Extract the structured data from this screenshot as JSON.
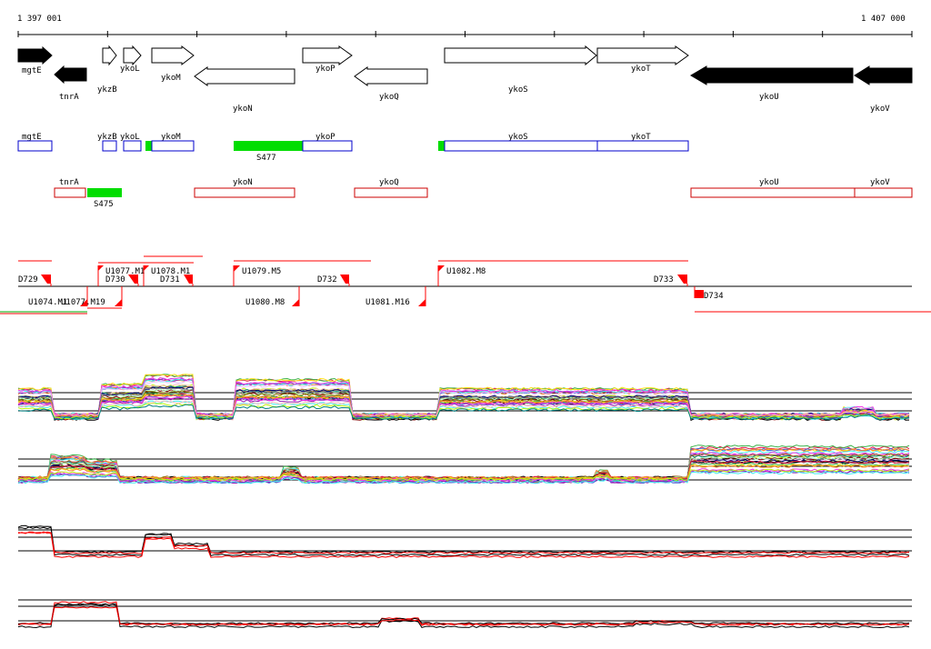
{
  "ruler": {
    "start_label": "1 397 001",
    "end_label": "1 407 000"
  },
  "colors": {
    "gene_filled": "#000000",
    "forward_box": "#0000cc",
    "reverse_box": "#cc0000",
    "rna_segment": "#00dd00",
    "marker": "#ff0000",
    "expression_lines": [
      "#e6194b",
      "#3cb44b",
      "#ffe119",
      "#4363d8",
      "#f58231",
      "#911eb4",
      "#46f0f0",
      "#f032e6",
      "#bcf60c",
      "#fabebe",
      "#008080",
      "#e6beff",
      "#9a6324",
      "#800000",
      "#aaffc3",
      "#808000",
      "#000075",
      "#808080"
    ]
  },
  "genes": [
    {
      "name": "mgtE",
      "strand": "+",
      "filled": true
    },
    {
      "name": "tnrA",
      "strand": "-",
      "filled": true
    },
    {
      "name": "ykzB",
      "strand": "+",
      "filled": false
    },
    {
      "name": "ykoL",
      "strand": "+",
      "filled": false
    },
    {
      "name": "ykoM",
      "strand": "+",
      "filled": false
    },
    {
      "name": "ykoN",
      "strand": "-",
      "filled": false
    },
    {
      "name": "ykoP",
      "strand": "+",
      "filled": false
    },
    {
      "name": "ykoQ",
      "strand": "-",
      "filled": false
    },
    {
      "name": "ykoS",
      "strand": "+",
      "filled": false
    },
    {
      "name": "ykoT",
      "strand": "+",
      "filled": false
    },
    {
      "name": "ykoU",
      "strand": "-",
      "filled": true
    },
    {
      "name": "ykoV",
      "strand": "-",
      "filled": true
    }
  ],
  "forward_boxes": [
    {
      "name": "mgtE"
    },
    {
      "name": "ykzB"
    },
    {
      "name": "ykoL"
    },
    {
      "name": "ykoM"
    },
    {
      "name": "ykoP"
    },
    {
      "name": "ykoS"
    },
    {
      "name": "ykoT"
    }
  ],
  "forward_rna": [
    {
      "name": "S477"
    }
  ],
  "reverse_boxes": [
    {
      "name": "tnrA"
    },
    {
      "name": "ykoN"
    },
    {
      "name": "ykoQ"
    },
    {
      "name": "ykoU"
    },
    {
      "name": "ykoV"
    }
  ],
  "reverse_rna": [
    {
      "name": "S475"
    }
  ],
  "markers_top": [
    {
      "name": "D729"
    },
    {
      "name": "U1077.M1"
    },
    {
      "name": "U1078.M1"
    },
    {
      "name": "D730"
    },
    {
      "name": "D731"
    },
    {
      "name": "U1079.M5"
    },
    {
      "name": "D732"
    },
    {
      "name": "U1082.M8"
    },
    {
      "name": "D733"
    }
  ],
  "markers_bottom": [
    {
      "name": "U1074.M1"
    },
    {
      "name": "U1077.M19"
    },
    {
      "name": "U1080.M8"
    },
    {
      "name": "U1081.M16"
    },
    {
      "name": "D734"
    }
  ]
}
